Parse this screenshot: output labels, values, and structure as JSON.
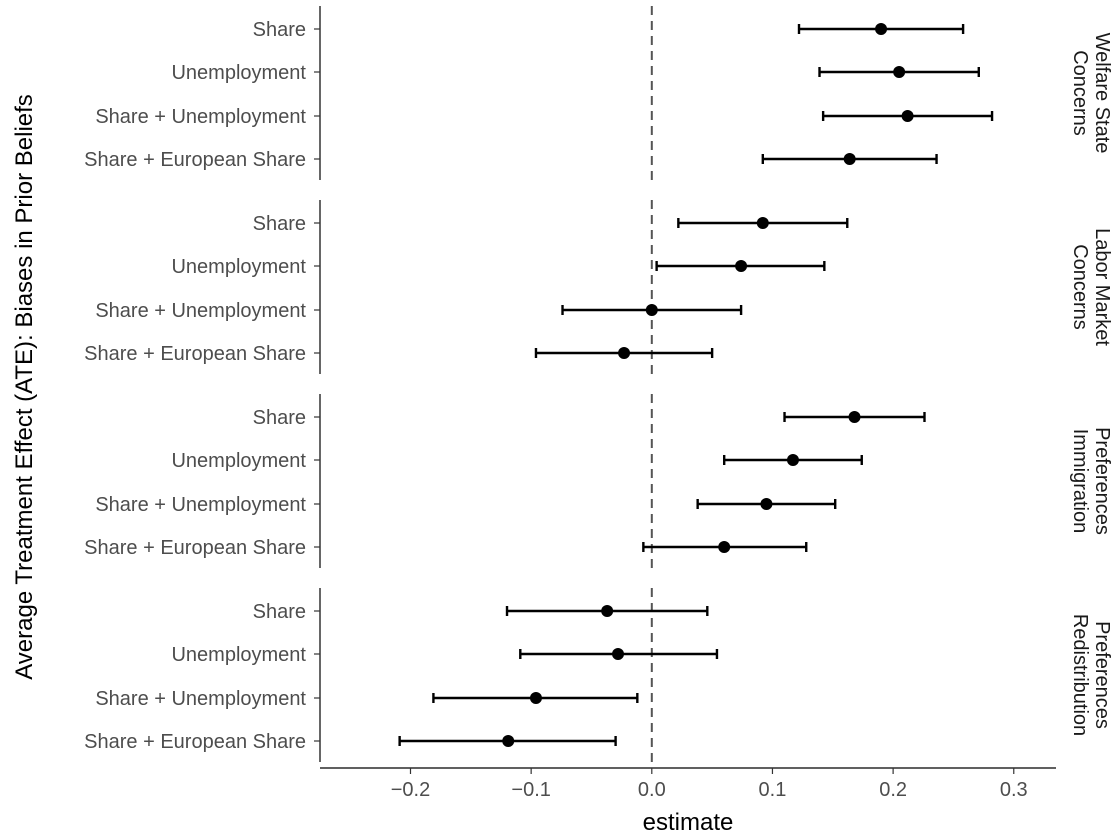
{
  "chart_data": {
    "type": "forest-plot",
    "xlabel": "estimate",
    "ylabel": "Average Treatment Effect (ATE): Biases in Prior Beliefs",
    "xlim": [
      -0.275,
      0.335
    ],
    "x_ticks": [
      -0.2,
      -0.1,
      0.0,
      0.1,
      0.2,
      0.3
    ],
    "x_tick_labels": [
      "−0.2",
      "−0.1",
      "0.0",
      "0.1",
      "0.2",
      "0.3"
    ],
    "reference_line": {
      "x": 0,
      "style": "dashed"
    },
    "grid": false,
    "categories": [
      "Share",
      "Unemployment",
      "Share + Unemployment",
      "Share + European Share"
    ],
    "facets": [
      {
        "label_lines": [
          "Welfare State",
          "Concerns"
        ],
        "estimates": [
          0.19,
          0.205,
          0.212,
          0.164
        ],
        "ci_low": [
          0.122,
          0.139,
          0.142,
          0.092
        ],
        "ci_high": [
          0.258,
          0.271,
          0.282,
          0.236
        ]
      },
      {
        "label_lines": [
          "Labor Market",
          "Concerns"
        ],
        "estimates": [
          0.092,
          0.074,
          0.0,
          -0.023
        ],
        "ci_low": [
          0.022,
          0.004,
          -0.074,
          -0.096
        ],
        "ci_high": [
          0.162,
          0.143,
          0.074,
          0.05
        ]
      },
      {
        "label_lines": [
          "Preferences",
          "Immigration"
        ],
        "estimates": [
          0.168,
          0.117,
          0.095,
          0.06
        ],
        "ci_low": [
          0.11,
          0.06,
          0.038,
          -0.007
        ],
        "ci_high": [
          0.226,
          0.174,
          0.152,
          0.128
        ]
      },
      {
        "label_lines": [
          "Preferences",
          "Redistribution"
        ],
        "estimates": [
          -0.037,
          -0.028,
          -0.096,
          -0.119
        ],
        "ci_low": [
          -0.12,
          -0.109,
          -0.181,
          -0.209
        ],
        "ci_high": [
          0.046,
          0.054,
          -0.012,
          -0.03
        ]
      }
    ]
  }
}
